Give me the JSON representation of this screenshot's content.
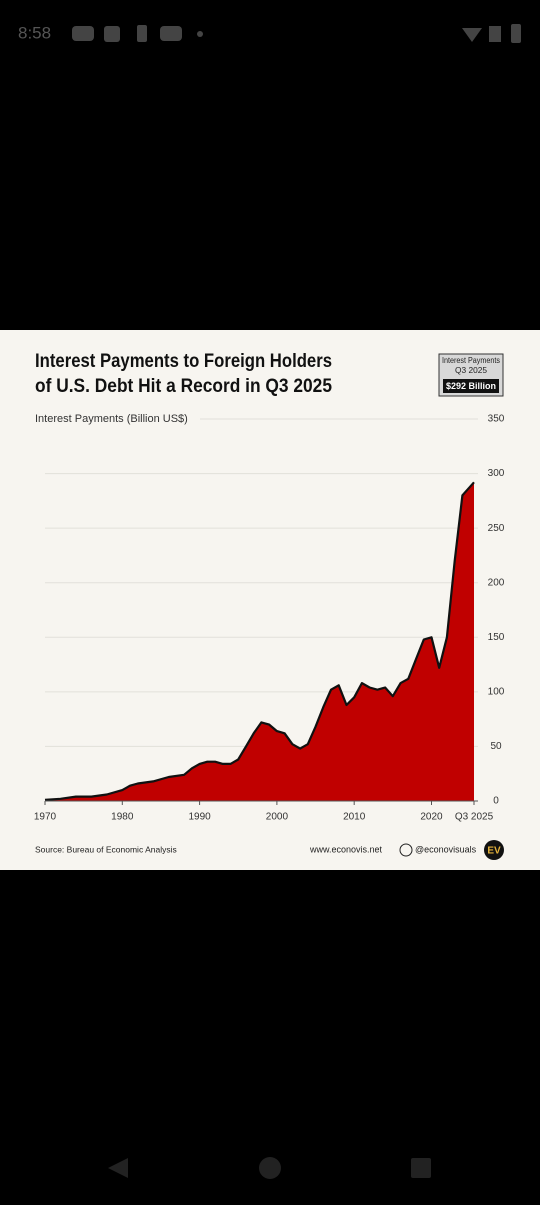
{
  "status_bar": {
    "time": "8:58"
  },
  "chart_data": {
    "type": "area",
    "title_lines": [
      "Interest Payments to Foreign Holders",
      "of U.S. Debt Hit a Record in Q3 2025"
    ],
    "ylabel": "Interest Payments (Billion US$)",
    "annotation": {
      "lines": [
        "Interest Payments",
        "Q3 2025"
      ],
      "value_label": "$292 Billion"
    },
    "source": "Source: Bureau of Economic Analysis",
    "website": "www.econovis.net",
    "handle": "@econovisuals",
    "logo": "EV",
    "color": "#c00000",
    "line_color": "#111111",
    "grid": true,
    "x": [
      1970,
      1972,
      1974,
      1976,
      1978,
      1980,
      1981,
      1982,
      1984,
      1986,
      1988,
      1989,
      1990,
      1991,
      1992,
      1993,
      1994,
      1995,
      1996,
      1997,
      1998,
      1999,
      2000,
      2001,
      2002,
      2003,
      2004,
      2005,
      2006,
      2007,
      2008,
      2009,
      2010,
      2011,
      2012,
      2013,
      2014,
      2015,
      2016,
      2017,
      2018,
      2019,
      2020,
      2021,
      2022,
      2023,
      2024,
      2025,
      2025.5
    ],
    "values": [
      1,
      2,
      4,
      4,
      6,
      10,
      14,
      16,
      18,
      22,
      24,
      30,
      34,
      36,
      36,
      34,
      34,
      38,
      50,
      62,
      72,
      70,
      64,
      62,
      52,
      48,
      52,
      68,
      86,
      102,
      106,
      88,
      95,
      108,
      104,
      102,
      104,
      96,
      108,
      112,
      130,
      148,
      150,
      122,
      150,
      220,
      280,
      288,
      292
    ],
    "xlim": [
      1970,
      2025.5
    ],
    "xticks": [
      1970,
      1980,
      1990,
      2000,
      2010,
      2020,
      {
        "value": 2025.5,
        "label": "Q3 2025"
      }
    ],
    "ylim": [
      0,
      350
    ],
    "yticks": [
      0,
      50,
      100,
      150,
      200,
      250,
      300,
      350
    ]
  }
}
